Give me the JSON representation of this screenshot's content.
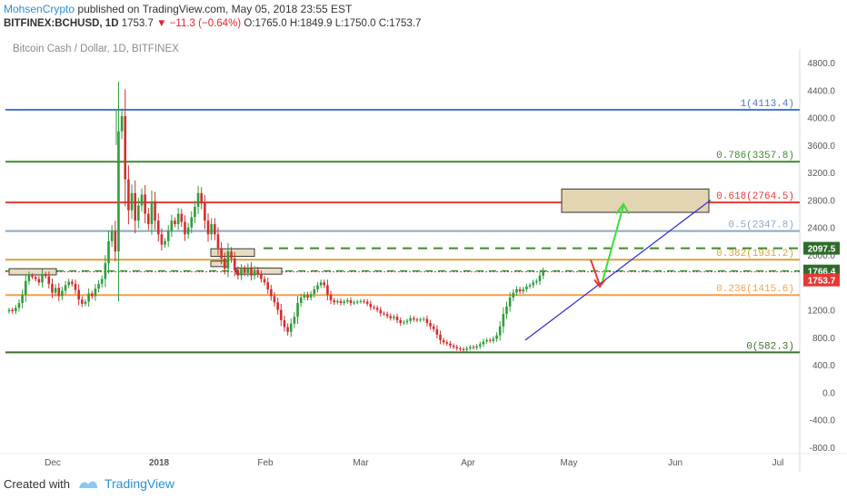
{
  "header": {
    "author": "MohsenCrypto",
    "published": "published on TradingView.com, May 05, 2018 23:55 EST",
    "symbol": "BITFINEX:BCHUSD, 1D",
    "last": "1753.7",
    "change": "−11.3 (−0.64%)",
    "open": "O:1765.0",
    "high": "H:1849.9",
    "low": "L:1750.0",
    "close": "C:1753.7"
  },
  "subtitle": "Bitcoin Cash / Dollar, 1D, BITFINEX",
  "footer": {
    "created_with": "Created with",
    "brand": "TradingView"
  },
  "colors": {
    "up": "#2e9e3c",
    "down": "#d32f2f",
    "fib_1": "#4a77d4",
    "fib_0786": "#3f8a2c",
    "fib_0618": "#e53935",
    "fib_05": "#8aa8c0",
    "fib_0382": "#d9a43a",
    "fib_0236": "#f5a04a",
    "fib_0": "#3f6f2a",
    "trendline": "#2a2ad4",
    "price_label": "#e53935",
    "level_label": "#2e6b2a"
  },
  "chart_data": {
    "type": "candlestick",
    "title": "Bitcoin Cash / Dollar, 1D, BITFINEX",
    "ylim": [
      -800,
      4800
    ],
    "y_ticks": [
      "4800.0",
      "4400.0",
      "4000.0",
      "3600.0",
      "3200.0",
      "2800.0",
      "2400.0",
      "2000.0",
      "1600.0",
      "1200.0",
      "800.0",
      "400.0",
      "0.0",
      "-400.0",
      "-800.0"
    ],
    "x_ticks": [
      "Dec",
      "2018",
      "Feb",
      "Mar",
      "Apr",
      "May",
      "Jun",
      "Jul"
    ],
    "fib_levels": [
      {
        "ratio": "1",
        "value": 4113.4,
        "label": "1(4113.4)",
        "color_key": "fib_1"
      },
      {
        "ratio": "0.786",
        "value": 3357.8,
        "label": "0.786(3357.8)",
        "color_key": "fib_0786"
      },
      {
        "ratio": "0.618",
        "value": 2764.5,
        "label": "0.618(2764.5)",
        "color_key": "fib_0618"
      },
      {
        "ratio": "0.5",
        "value": 2347.8,
        "label": "0.5(2347.8)",
        "color_key": "fib_05"
      },
      {
        "ratio": "0.382",
        "value": 1931.2,
        "label": "0.382(1931.2)",
        "color_key": "fib_0382"
      },
      {
        "ratio": "0.236",
        "value": 1415.6,
        "label": "0.236(1415.6)",
        "color_key": "fib_0236"
      },
      {
        "ratio": "0",
        "value": 582.3,
        "label": "0(582.3)",
        "color_key": "fib_0"
      }
    ],
    "price_labels": [
      {
        "value": 2097.5,
        "text": "2097.5"
      },
      {
        "value": 1766.4,
        "text": "1766.4"
      },
      {
        "value": 1753.7,
        "text": "1753.7"
      }
    ],
    "candles_closes": [
      1200,
      1180,
      1230,
      1300,
      1420,
      1620,
      1700,
      1680,
      1650,
      1600,
      1720,
      1690,
      1580,
      1450,
      1520,
      1400,
      1480,
      1560,
      1610,
      1580,
      1490,
      1350,
      1290,
      1320,
      1440,
      1400,
      1510,
      1580,
      1650,
      1880,
      2200,
      2350,
      2050,
      3800,
      4020,
      3100,
      2650,
      2900,
      2500,
      2720,
      2880,
      2600,
      2450,
      2780,
      2500,
      2300,
      2150,
      2200,
      2350,
      2500,
      2450,
      2600,
      2480,
      2300,
      2400,
      2550,
      2700,
      2900,
      2750,
      2500,
      2300,
      2450,
      2300,
      2100,
      1950,
      1800,
      2050,
      1950,
      1780,
      1700,
      1800,
      1740,
      1820,
      1700,
      1780,
      1720,
      1650,
      1600,
      1500,
      1400,
      1310,
      1200,
      1050,
      950,
      880,
      1000,
      1100,
      1300,
      1380,
      1420,
      1380,
      1430,
      1500,
      1560,
      1600,
      1560,
      1420,
      1340,
      1310,
      1330,
      1300,
      1320,
      1340,
      1300,
      1310,
      1320,
      1330,
      1320,
      1290,
      1240,
      1230,
      1200,
      1150,
      1140,
      1110,
      1080,
      1100,
      1050,
      1010,
      1020,
      1040,
      1080,
      1060,
      1050,
      1060,
      1070,
      1010,
      960,
      920,
      840,
      760,
      730,
      710,
      680,
      660,
      640,
      630,
      620,
      640,
      660,
      650,
      670,
      700,
      740,
      760,
      750,
      780,
      830,
      960,
      1140,
      1250,
      1380,
      1450,
      1500,
      1470,
      1500,
      1540,
      1560,
      1600,
      1620,
      1700,
      1766
    ],
    "trendline": {
      "from": {
        "x_index": 149,
        "y": 760
      },
      "to": {
        "x_index": 216,
        "y": 2760
      }
    },
    "target_box": {
      "from_index": 191,
      "to_index": 218,
      "y_low": 2620,
      "y_high": 2960
    }
  }
}
